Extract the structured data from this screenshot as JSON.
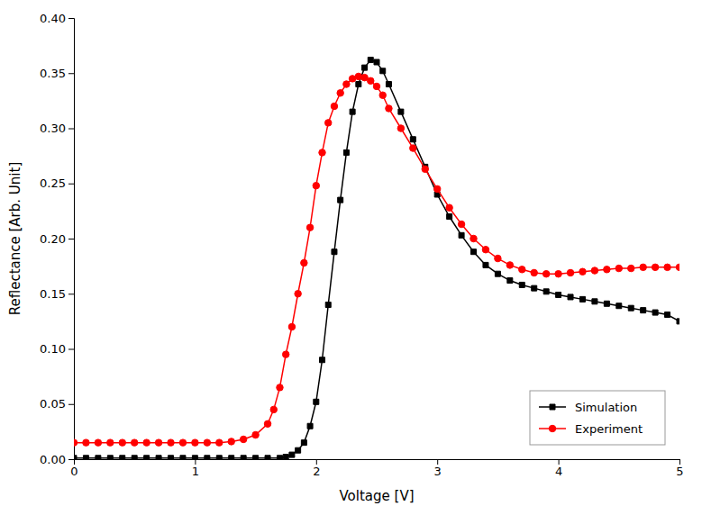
{
  "chart_data": {
    "type": "line",
    "xlabel": "Voltage [V]",
    "ylabel": "Reflectance [Arb. Unit]",
    "xlim": [
      0,
      5
    ],
    "ylim": [
      0.0,
      0.4
    ],
    "xticks": [
      0,
      1,
      2,
      3,
      4,
      5
    ],
    "yticks": [
      {
        "value": 0.0,
        "label": "0.00"
      },
      0.05,
      {
        "value": 0.1,
        "label": "0.10"
      },
      0.15,
      {
        "value": 0.2,
        "label": "0.20"
      },
      0.25,
      {
        "value": 0.3,
        "label": "0.30"
      },
      0.35,
      {
        "value": 0.4,
        "label": "0.40"
      }
    ],
    "legend": "lower right",
    "series": [
      {
        "name": "Simulation",
        "color": "#000000",
        "marker": "square",
        "x": [
          0.0,
          0.1,
          0.2,
          0.3,
          0.4,
          0.5,
          0.6,
          0.7,
          0.8,
          0.9,
          1.0,
          1.1,
          1.2,
          1.3,
          1.4,
          1.5,
          1.6,
          1.7,
          1.75,
          1.8,
          1.85,
          1.9,
          1.95,
          2.0,
          2.05,
          2.1,
          2.15,
          2.2,
          2.25,
          2.3,
          2.35,
          2.4,
          2.45,
          2.5,
          2.55,
          2.6,
          2.7,
          2.8,
          2.9,
          3.0,
          3.1,
          3.2,
          3.3,
          3.4,
          3.5,
          3.6,
          3.7,
          3.8,
          3.9,
          4.0,
          4.1,
          4.2,
          4.3,
          4.4,
          4.5,
          4.6,
          4.7,
          4.8,
          4.9,
          5.0
        ],
        "values": [
          0.001,
          0.001,
          0.001,
          0.001,
          0.001,
          0.001,
          0.001,
          0.001,
          0.001,
          0.001,
          0.001,
          0.001,
          0.001,
          0.001,
          0.001,
          0.001,
          0.001,
          0.001,
          0.002,
          0.004,
          0.008,
          0.015,
          0.03,
          0.052,
          0.09,
          0.14,
          0.188,
          0.235,
          0.278,
          0.315,
          0.34,
          0.355,
          0.362,
          0.36,
          0.352,
          0.34,
          0.315,
          0.29,
          0.265,
          0.24,
          0.22,
          0.203,
          0.188,
          0.176,
          0.168,
          0.162,
          0.158,
          0.155,
          0.152,
          0.149,
          0.147,
          0.145,
          0.143,
          0.141,
          0.139,
          0.137,
          0.135,
          0.133,
          0.131,
          0.125
        ]
      },
      {
        "name": "Experiment",
        "color": "#ff0000",
        "marker": "circle",
        "x": [
          0.0,
          0.1,
          0.2,
          0.3,
          0.4,
          0.5,
          0.6,
          0.7,
          0.8,
          0.9,
          1.0,
          1.1,
          1.2,
          1.3,
          1.4,
          1.5,
          1.6,
          1.65,
          1.7,
          1.75,
          1.8,
          1.85,
          1.9,
          1.95,
          2.0,
          2.05,
          2.1,
          2.15,
          2.2,
          2.25,
          2.3,
          2.35,
          2.4,
          2.45,
          2.5,
          2.55,
          2.6,
          2.7,
          2.8,
          2.9,
          3.0,
          3.1,
          3.2,
          3.3,
          3.4,
          3.5,
          3.6,
          3.7,
          3.8,
          3.9,
          4.0,
          4.1,
          4.2,
          4.3,
          4.4,
          4.5,
          4.6,
          4.7,
          4.8,
          4.9,
          5.0
        ],
        "values": [
          0.015,
          0.015,
          0.015,
          0.015,
          0.015,
          0.015,
          0.015,
          0.015,
          0.015,
          0.015,
          0.015,
          0.015,
          0.015,
          0.016,
          0.018,
          0.022,
          0.032,
          0.045,
          0.065,
          0.095,
          0.12,
          0.15,
          0.178,
          0.21,
          0.248,
          0.278,
          0.305,
          0.32,
          0.332,
          0.34,
          0.345,
          0.347,
          0.346,
          0.343,
          0.338,
          0.33,
          0.318,
          0.3,
          0.282,
          0.263,
          0.245,
          0.228,
          0.213,
          0.2,
          0.19,
          0.182,
          0.176,
          0.172,
          0.169,
          0.168,
          0.168,
          0.169,
          0.17,
          0.171,
          0.172,
          0.173,
          0.173,
          0.174,
          0.174,
          0.174,
          0.174
        ]
      }
    ]
  }
}
